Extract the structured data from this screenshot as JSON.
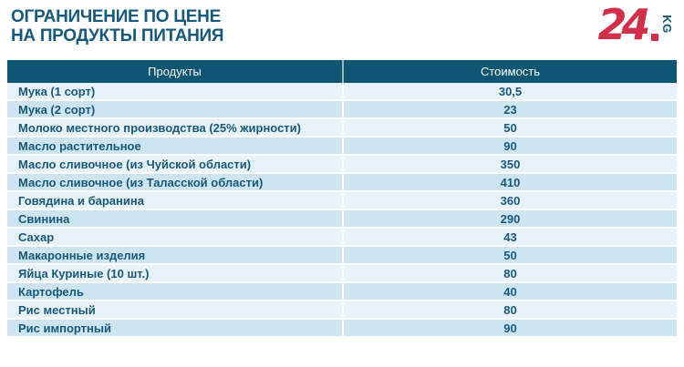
{
  "header": {
    "title_line1": "ОГРАНИЧЕНИЕ ПО ЦЕНЕ",
    "title_line2": "НА ПРОДУКТЫ ПИТАНИЯ",
    "logo_number": "24",
    "logo_suffix": "KG"
  },
  "chart_data": {
    "type": "table",
    "title": "ОГРАНИЧЕНИЕ ПО ЦЕНЕ НА ПРОДУКТЫ ПИТАНИЯ",
    "columns": [
      "Продукты",
      "Стоимость"
    ],
    "rows": [
      [
        "Мука (1 сорт)",
        "30,5"
      ],
      [
        "Мука (2 сорт)",
        "23"
      ],
      [
        "Молоко местного производства (25% жирности)",
        "50"
      ],
      [
        "Масло растительное",
        "90"
      ],
      [
        "Масло сливочное (из Чуйской области)",
        "350"
      ],
      [
        "Масло сливочное (из Таласской области)",
        "410"
      ],
      [
        "Говядина и баранина",
        "360"
      ],
      [
        "Свинина",
        "290"
      ],
      [
        "Сахар",
        "43"
      ],
      [
        "Макаронные изделия",
        "50"
      ],
      [
        "Яйца Куриные (10 шт.)",
        "80"
      ],
      [
        "Картофель",
        "40"
      ],
      [
        "Рис местный",
        "80"
      ],
      [
        "Рис импортный",
        "90"
      ]
    ],
    "layout": {
      "column_split": "50/50",
      "row_striping": "alternating light blue",
      "values_alignment": "center",
      "products_alignment": "left"
    }
  },
  "colors": {
    "accent_teal": "#0f5674",
    "title_text": "#17597c",
    "row_light": "#e7f2f9",
    "row_dark": "#cde5f0",
    "logo_red": "#d12f4a",
    "header_divider": "#9db5c1",
    "body_divider": "#ffffff",
    "page_bg": "#ffffff"
  }
}
